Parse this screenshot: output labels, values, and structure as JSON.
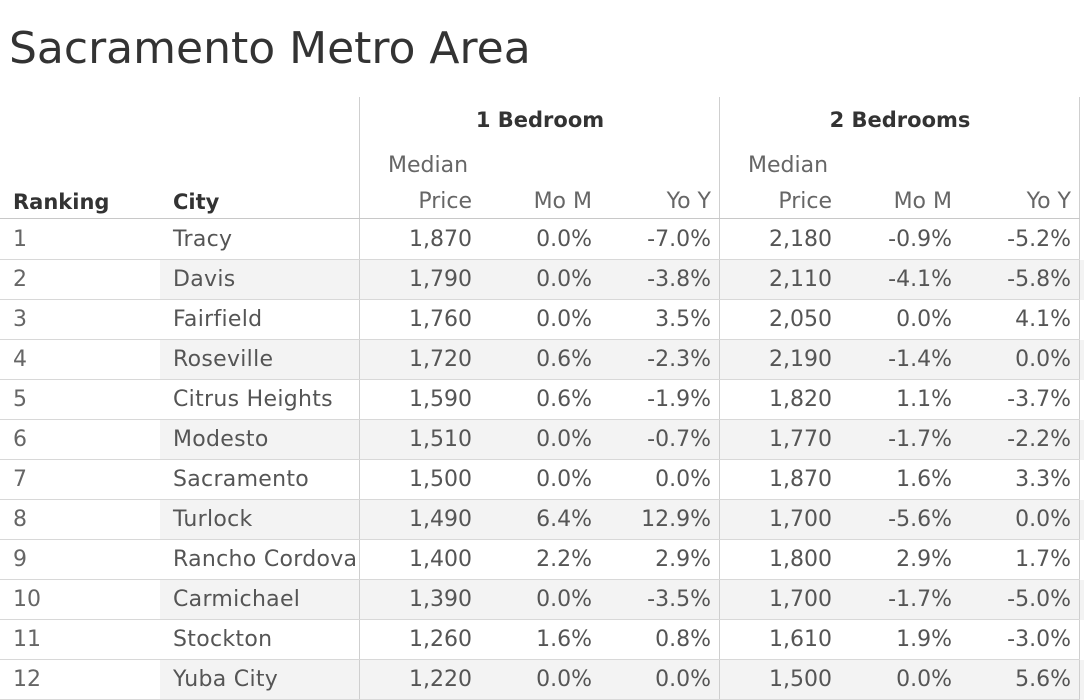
{
  "title": "Sacramento Metro Area",
  "chart_data": {
    "type": "table",
    "title": "Sacramento Metro Area",
    "groups": [
      "1 Bedroom",
      "2 Bedrooms"
    ],
    "columns": [
      "Ranking",
      "City",
      "Median Price",
      "Mo M",
      "Yo Y",
      "Median Price",
      "Mo M",
      "Yo Y"
    ],
    "header": {
      "ranking": "Ranking",
      "city": "City",
      "median_top": "Median",
      "median_bottom": "Price",
      "mom": "Mo M",
      "yoy": "Yo Y"
    },
    "rows": [
      {
        "rank": "1",
        "city": "Tracy",
        "b1_price": "1,870",
        "b1_mom": "0.0%",
        "b1_yoy": "-7.0%",
        "b2_price": "2,180",
        "b2_mom": "-0.9%",
        "b2_yoy": "-5.2%"
      },
      {
        "rank": "2",
        "city": "Davis",
        "b1_price": "1,790",
        "b1_mom": "0.0%",
        "b1_yoy": "-3.8%",
        "b2_price": "2,110",
        "b2_mom": "-4.1%",
        "b2_yoy": "-5.8%"
      },
      {
        "rank": "3",
        "city": "Fairfield",
        "b1_price": "1,760",
        "b1_mom": "0.0%",
        "b1_yoy": "3.5%",
        "b2_price": "2,050",
        "b2_mom": "0.0%",
        "b2_yoy": "4.1%"
      },
      {
        "rank": "4",
        "city": "Roseville",
        "b1_price": "1,720",
        "b1_mom": "0.6%",
        "b1_yoy": "-2.3%",
        "b2_price": "2,190",
        "b2_mom": "-1.4%",
        "b2_yoy": "0.0%"
      },
      {
        "rank": "5",
        "city": "Citrus Heights",
        "b1_price": "1,590",
        "b1_mom": "0.6%",
        "b1_yoy": "-1.9%",
        "b2_price": "1,820",
        "b2_mom": "1.1%",
        "b2_yoy": "-3.7%"
      },
      {
        "rank": "6",
        "city": "Modesto",
        "b1_price": "1,510",
        "b1_mom": "0.0%",
        "b1_yoy": "-0.7%",
        "b2_price": "1,770",
        "b2_mom": "-1.7%",
        "b2_yoy": "-2.2%"
      },
      {
        "rank": "7",
        "city": "Sacramento",
        "b1_price": "1,500",
        "b1_mom": "0.0%",
        "b1_yoy": "0.0%",
        "b2_price": "1,870",
        "b2_mom": "1.6%",
        "b2_yoy": "3.3%"
      },
      {
        "rank": "8",
        "city": "Turlock",
        "b1_price": "1,490",
        "b1_mom": "6.4%",
        "b1_yoy": "12.9%",
        "b2_price": "1,700",
        "b2_mom": "-5.6%",
        "b2_yoy": "0.0%"
      },
      {
        "rank": "9",
        "city": "Rancho Cordova",
        "b1_price": "1,400",
        "b1_mom": "2.2%",
        "b1_yoy": "2.9%",
        "b2_price": "1,800",
        "b2_mom": "2.9%",
        "b2_yoy": "1.7%"
      },
      {
        "rank": "10",
        "city": "Carmichael",
        "b1_price": "1,390",
        "b1_mom": "0.0%",
        "b1_yoy": "-3.5%",
        "b2_price": "1,700",
        "b2_mom": "-1.7%",
        "b2_yoy": "-5.0%"
      },
      {
        "rank": "11",
        "city": "Stockton",
        "b1_price": "1,260",
        "b1_mom": "1.6%",
        "b1_yoy": "0.8%",
        "b2_price": "1,610",
        "b2_mom": "1.9%",
        "b2_yoy": "-3.0%"
      },
      {
        "rank": "12",
        "city": "Yuba City",
        "b1_price": "1,220",
        "b1_mom": "0.0%",
        "b1_yoy": "0.0%",
        "b2_price": "1,500",
        "b2_mom": "0.0%",
        "b2_yoy": "5.6%"
      }
    ]
  }
}
